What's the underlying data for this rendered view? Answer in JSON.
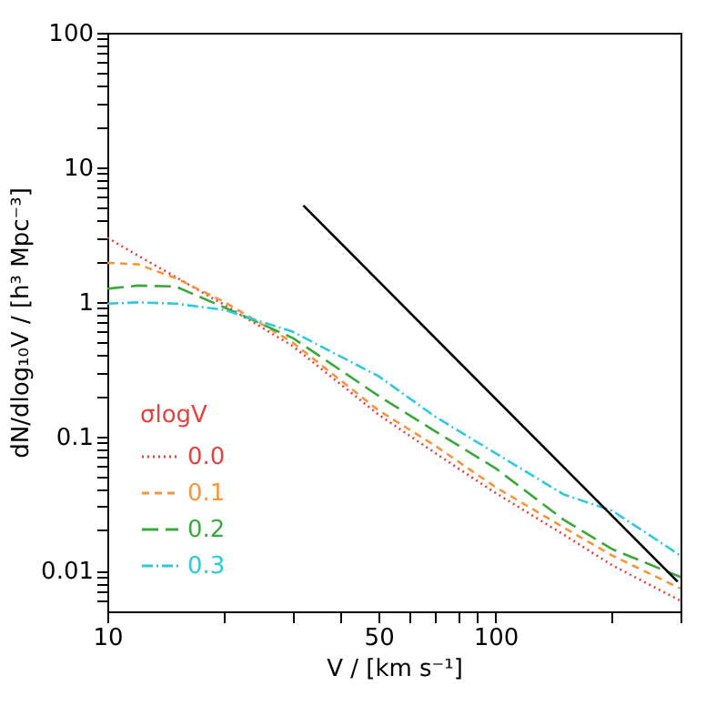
{
  "chart_data": {
    "type": "line",
    "xlabel": "V / [km s⁻¹]",
    "ylabel": "dN/dlog₁₀V / [h³ Mpc⁻³]",
    "legend_title": "σlogV",
    "legend": "bottom left",
    "log": "xy",
    "grid": false,
    "xlim": [
      10,
      300
    ],
    "ylim": [
      0.005,
      100
    ],
    "xticks": [
      10,
      {
        "value": 20,
        "label": null
      },
      {
        "value": 30,
        "label": null
      },
      {
        "value": 40,
        "label": null
      },
      50,
      {
        "value": 60,
        "label": null
      },
      {
        "value": 70,
        "label": null
      },
      {
        "value": 80,
        "label": null
      },
      {
        "value": 90,
        "label": null
      },
      100,
      {
        "value": 200,
        "label": null
      },
      {
        "value": 300,
        "label": null
      }
    ],
    "yticks": [
      {
        "value": 0.006,
        "label": null
      },
      {
        "value": 0.007,
        "label": null
      },
      {
        "value": 0.008,
        "label": null
      },
      {
        "value": 0.009,
        "label": null
      },
      0.01,
      {
        "value": 0.02,
        "label": null
      },
      {
        "value": 0.03,
        "label": null
      },
      {
        "value": 0.04,
        "label": null
      },
      {
        "value": 0.05,
        "label": null
      },
      {
        "value": 0.06,
        "label": null
      },
      {
        "value": 0.07,
        "label": null
      },
      {
        "value": 0.08,
        "label": null
      },
      {
        "value": 0.09,
        "label": null
      },
      0.1,
      {
        "value": 0.2,
        "label": null
      },
      {
        "value": 0.3,
        "label": null
      },
      {
        "value": 0.4,
        "label": null
      },
      {
        "value": 0.5,
        "label": null
      },
      {
        "value": 0.6,
        "label": null
      },
      {
        "value": 0.7,
        "label": null
      },
      {
        "value": 0.8,
        "label": null
      },
      {
        "value": 0.9,
        "label": null
      },
      1,
      {
        "value": 2,
        "label": null
      },
      {
        "value": 3,
        "label": null
      },
      {
        "value": 4,
        "label": null
      },
      {
        "value": 5,
        "label": null
      },
      {
        "value": 6,
        "label": null
      },
      {
        "value": 7,
        "label": null
      },
      {
        "value": 8,
        "label": null
      },
      {
        "value": 9,
        "label": null
      },
      10,
      {
        "value": 20,
        "label": null
      },
      {
        "value": 30,
        "label": null
      },
      {
        "value": 40,
        "label": null
      },
      {
        "value": 50,
        "label": null
      },
      {
        "value": 60,
        "label": null
      },
      {
        "value": 70,
        "label": null
      },
      {
        "value": 80,
        "label": null
      },
      {
        "value": 90,
        "label": null
      },
      100
    ],
    "x": [
      10,
      12,
      15,
      20,
      30,
      50,
      70,
      100,
      150,
      200,
      300
    ],
    "series": [
      {
        "name": "0.0",
        "color": "#e8413c",
        "line_style": "dotted",
        "values": [
          3.0,
          2.2,
          1.53,
          0.95,
          0.47,
          0.145,
          0.075,
          0.038,
          0.0186,
          0.011,
          0.006
        ]
      },
      {
        "name": "0.1",
        "color": "#f7953a",
        "line_style": "dashed",
        "values": [
          1.95,
          1.9,
          1.5,
          1.0,
          0.5,
          0.156,
          0.085,
          0.042,
          0.021,
          0.013,
          0.0074
        ]
      },
      {
        "name": "0.2",
        "color": "#3aa83a",
        "line_style": "longdashed",
        "values": [
          1.25,
          1.32,
          1.3,
          0.91,
          0.54,
          0.2,
          0.109,
          0.058,
          0.024,
          0.0145,
          0.009
        ]
      },
      {
        "name": "0.3",
        "color": "#2ec8e0",
        "line_style": "dashdot",
        "values": [
          0.97,
          0.99,
          0.97,
          0.87,
          0.6,
          0.28,
          0.14,
          0.075,
          0.037,
          0.028,
          0.013
        ]
      },
      {
        "color": "#000000",
        "line_style": "solid",
        "x": [
          32,
          295
        ],
        "values": [
          5.2,
          0.0083
        ]
      }
    ]
  }
}
